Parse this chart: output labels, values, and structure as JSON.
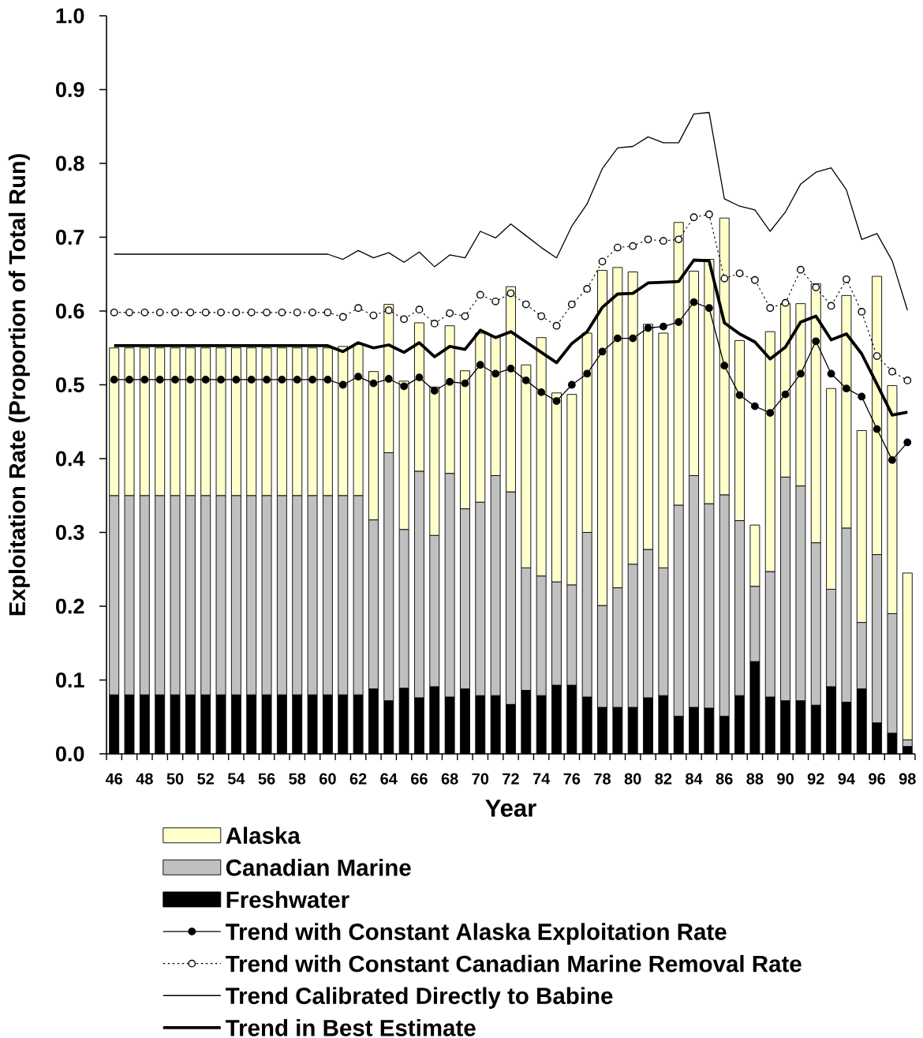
{
  "chart_data": {
    "type": "bar",
    "stacked": true,
    "xlabel": "Year",
    "ylabel": "Exploitation Rate (Proportion of Total Run)",
    "categories": [
      "46",
      null,
      "48",
      null,
      "50",
      null,
      "52",
      null,
      "54",
      null,
      "56",
      null,
      "58",
      null,
      "60",
      null,
      "62",
      null,
      "64",
      null,
      "66",
      null,
      "68",
      null,
      "70",
      null,
      "72",
      null,
      "74",
      null,
      "76",
      null,
      "78",
      null,
      "80",
      null,
      "82",
      null,
      "84",
      null,
      "86",
      null,
      "88",
      null,
      "90",
      null,
      "92",
      null,
      "94",
      null,
      "96",
      null,
      "98"
    ],
    "ylim": [
      0,
      1
    ],
    "yticks": [
      {
        "value": 0,
        "label": "0.0"
      },
      0.1,
      0.2,
      0.3,
      0.4,
      0.5,
      0.6,
      0.7,
      0.8,
      0.9,
      {
        "value": 1,
        "label": "1.0"
      }
    ],
    "legend": "bottom",
    "series": [
      {
        "name": "Freshwater",
        "color": "#000000",
        "values": [
          0.08,
          0.08,
          0.08,
          0.08,
          0.08,
          0.08,
          0.08,
          0.08,
          0.08,
          0.08,
          0.08,
          0.08,
          0.08,
          0.08,
          0.08,
          0.08,
          0.08,
          0.088,
          0.072,
          0.089,
          0.076,
          0.091,
          0.077,
          0.088,
          0.079,
          0.079,
          0.067,
          0.086,
          0.079,
          0.093,
          0.093,
          0.077,
          0.063,
          0.063,
          0.063,
          0.076,
          0.079,
          0.051,
          0.063,
          0.062,
          0.051,
          0.079,
          0.125,
          0.077,
          0.072,
          0.072,
          0.066,
          0.091,
          0.07,
          0.088,
          0.042,
          0.028,
          0.01
        ]
      },
      {
        "name": "Canadian Marine",
        "color": "#c0c0c0",
        "values": [
          0.27,
          0.27,
          0.27,
          0.27,
          0.27,
          0.27,
          0.27,
          0.27,
          0.27,
          0.27,
          0.27,
          0.27,
          0.27,
          0.27,
          0.27,
          0.27,
          0.27,
          0.229,
          0.336,
          0.215,
          0.307,
          0.205,
          0.303,
          0.244,
          0.262,
          0.298,
          0.288,
          0.166,
          0.162,
          0.14,
          0.136,
          0.223,
          0.138,
          0.162,
          0.194,
          0.201,
          0.173,
          0.286,
          0.314,
          0.277,
          0.3,
          0.237,
          0.102,
          0.17,
          0.303,
          0.291,
          0.22,
          0.132,
          0.236,
          0.09,
          0.228,
          0.162,
          0.009
        ]
      },
      {
        "name": "Alaska",
        "color": "#ffffcc",
        "values": [
          0.2,
          0.2,
          0.2,
          0.2,
          0.2,
          0.2,
          0.2,
          0.2,
          0.2,
          0.2,
          0.2,
          0.2,
          0.2,
          0.2,
          0.2,
          0.202,
          0.205,
          0.201,
          0.201,
          0.201,
          0.201,
          0.201,
          0.2,
          0.187,
          0.229,
          0.189,
          0.278,
          0.275,
          0.323,
          0.256,
          0.258,
          0.27,
          0.454,
          0.434,
          0.396,
          0.305,
          0.318,
          0.383,
          0.277,
          0.331,
          0.375,
          0.244,
          0.083,
          0.325,
          0.235,
          0.247,
          0.351,
          0.272,
          0.315,
          0.26,
          0.377,
          0.309,
          0.226
        ]
      },
      {
        "name": "Trend with Constant Alaska Exploitation Rate",
        "type": "line",
        "color": "#000000",
        "marker": "circle",
        "line_style": "solid",
        "values": [
          0.507,
          0.507,
          0.507,
          0.507,
          0.507,
          0.507,
          0.507,
          0.507,
          0.507,
          0.507,
          0.507,
          0.507,
          0.507,
          0.507,
          0.507,
          0.5,
          0.511,
          0.502,
          0.508,
          0.498,
          0.51,
          0.492,
          0.504,
          0.502,
          0.527,
          0.515,
          0.522,
          0.506,
          0.49,
          0.478,
          0.5,
          0.515,
          0.545,
          0.563,
          0.563,
          0.577,
          0.579,
          0.585,
          0.612,
          0.604,
          0.526,
          0.486,
          0.471,
          0.462,
          0.487,
          0.515,
          0.559,
          0.515,
          0.495,
          0.484,
          0.44,
          0.398,
          0.422
        ]
      },
      {
        "name": "Trend with Constant Canadian Marine Removal Rate",
        "type": "line",
        "color": "#000000",
        "marker": "circle",
        "line_style": "dotted",
        "values": [
          0.598,
          0.598,
          0.598,
          0.598,
          0.598,
          0.598,
          0.598,
          0.598,
          0.598,
          0.598,
          0.598,
          0.598,
          0.598,
          0.598,
          0.598,
          0.592,
          0.604,
          0.594,
          0.601,
          0.589,
          0.602,
          0.583,
          0.597,
          0.593,
          0.622,
          0.613,
          0.624,
          0.609,
          0.593,
          0.58,
          0.609,
          0.63,
          0.667,
          0.686,
          0.688,
          0.697,
          0.695,
          0.697,
          0.727,
          0.731,
          0.644,
          0.651,
          0.642,
          0.604,
          0.611,
          0.656,
          0.632,
          0.607,
          0.643,
          0.599,
          0.539,
          0.518,
          0.506
        ]
      },
      {
        "name": "Trend Calibrated Directly to Babine",
        "type": "line",
        "color": "#000000",
        "marker": "none",
        "line_style": "solid",
        "values": [
          0.677,
          0.677,
          0.677,
          0.677,
          0.677,
          0.677,
          0.677,
          0.677,
          0.677,
          0.677,
          0.677,
          0.677,
          0.677,
          0.677,
          0.677,
          0.67,
          0.682,
          0.672,
          0.679,
          0.666,
          0.68,
          0.66,
          0.676,
          0.672,
          0.708,
          0.699,
          0.718,
          0.702,
          0.686,
          0.672,
          0.715,
          0.745,
          0.793,
          0.821,
          0.823,
          0.836,
          0.828,
          0.828,
          0.867,
          0.869,
          0.752,
          0.742,
          0.737,
          0.708,
          0.734,
          0.772,
          0.788,
          0.794,
          0.764,
          0.697,
          0.705,
          0.668,
          0.601
        ]
      },
      {
        "name": "Trend in Best Estimate",
        "type": "line",
        "color": "#000000",
        "marker": "none",
        "line_style": "solid",
        "values": [
          0.553,
          0.553,
          0.553,
          0.553,
          0.553,
          0.553,
          0.553,
          0.553,
          0.553,
          0.553,
          0.553,
          0.553,
          0.553,
          0.553,
          0.553,
          0.545,
          0.557,
          0.55,
          0.554,
          0.544,
          0.557,
          0.538,
          0.552,
          0.548,
          0.574,
          0.564,
          0.572,
          0.558,
          0.544,
          0.53,
          0.556,
          0.572,
          0.605,
          0.623,
          0.624,
          0.638,
          0.639,
          0.64,
          0.669,
          0.668,
          0.584,
          0.569,
          0.558,
          0.535,
          0.551,
          0.585,
          0.593,
          0.561,
          0.569,
          0.542,
          0.501,
          0.459,
          0.463
        ]
      }
    ]
  }
}
